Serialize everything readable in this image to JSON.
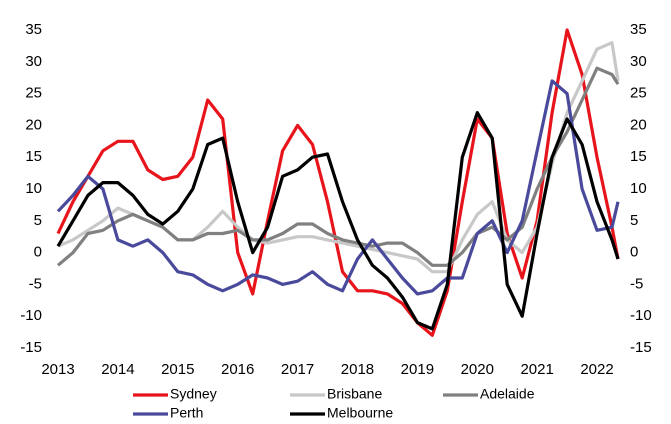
{
  "chart_data": {
    "type": "line",
    "x": [
      2013,
      2013.25,
      2013.5,
      2013.75,
      2014,
      2014.25,
      2014.5,
      2014.75,
      2015,
      2015.25,
      2015.5,
      2015.75,
      2016,
      2016.25,
      2016.5,
      2016.75,
      2017,
      2017.25,
      2017.5,
      2017.75,
      2018,
      2018.25,
      2018.5,
      2018.75,
      2019,
      2019.25,
      2019.5,
      2019.75,
      2020,
      2020.25,
      2020.5,
      2020.75,
      2021,
      2021.25,
      2021.5,
      2021.75,
      2022,
      2022.25,
      2022.35
    ],
    "series": [
      {
        "name": "Sydney",
        "color": "#e8141b",
        "values": [
          3,
          8,
          12,
          16,
          17.5,
          17.5,
          13,
          11.5,
          12,
          15,
          24,
          21,
          0,
          -6.5,
          5,
          16,
          20,
          17,
          8,
          -3,
          -6,
          -6,
          -6.5,
          -8,
          -11,
          -13,
          -6,
          8,
          21,
          18,
          3,
          -4,
          5,
          22,
          35,
          28,
          15,
          4,
          -1
        ]
      },
      {
        "name": "Brisbane",
        "color": "#c8c8c8",
        "values": [
          1,
          2,
          3.5,
          5,
          7,
          6,
          5,
          4,
          2,
          2,
          4,
          6.5,
          4,
          2,
          1.5,
          2,
          2.5,
          2.5,
          2,
          1.5,
          1,
          0.5,
          0,
          -0.5,
          -1,
          -3,
          -3,
          2,
          6,
          8,
          2,
          0,
          4,
          14,
          22,
          27,
          32,
          33,
          27
        ]
      },
      {
        "name": "Adelaide",
        "color": "#808080",
        "values": [
          -2,
          0,
          3,
          3.5,
          5,
          6,
          5,
          4,
          2,
          2,
          3,
          3,
          3.5,
          2,
          2,
          3,
          4.5,
          4.5,
          3,
          2,
          1.5,
          1,
          1.5,
          1.5,
          0,
          -2,
          -2,
          0,
          3,
          4,
          2,
          4,
          10,
          15,
          19,
          24,
          29,
          28,
          26.5
        ]
      },
      {
        "name": "Perth",
        "color": "#4a4a9c",
        "values": [
          6.5,
          9,
          12,
          10,
          2,
          1,
          2,
          0,
          -3,
          -3.5,
          -5,
          -6,
          -5,
          -3.5,
          -4,
          -5,
          -4.5,
          -3,
          -5,
          -6,
          -1,
          2,
          -1,
          -4,
          -6.5,
          -6,
          -4,
          -4,
          3,
          5,
          0,
          5,
          16,
          27,
          25,
          10,
          3.5,
          4,
          8
        ]
      },
      {
        "name": "Melbourne",
        "color": "#000000",
        "values": [
          1,
          5,
          9,
          11,
          11,
          9,
          6,
          4.5,
          6.5,
          10,
          17,
          18,
          8,
          0,
          4,
          12,
          13,
          15,
          15.5,
          8,
          2,
          -2,
          -4,
          -7,
          -11,
          -12,
          -5,
          15,
          22,
          18,
          -5,
          -10,
          3,
          15,
          21,
          17,
          8,
          2,
          -1
        ]
      }
    ],
    "xlim": [
      2013,
      2022.4
    ],
    "xticks": [
      2013,
      2014,
      2015,
      2016,
      2017,
      2018,
      2019,
      2020,
      2021,
      2022
    ],
    "ylim": [
      -15,
      35
    ],
    "yticks": [
      -15,
      -10,
      -5,
      0,
      5,
      10,
      15,
      20,
      25,
      30,
      35
    ],
    "y2lim": [
      -15,
      35
    ],
    "y2ticks": [
      -15,
      -10,
      -5,
      0,
      5,
      10,
      15,
      20,
      25,
      30,
      35
    ],
    "grid": false,
    "legend": "bottom"
  }
}
